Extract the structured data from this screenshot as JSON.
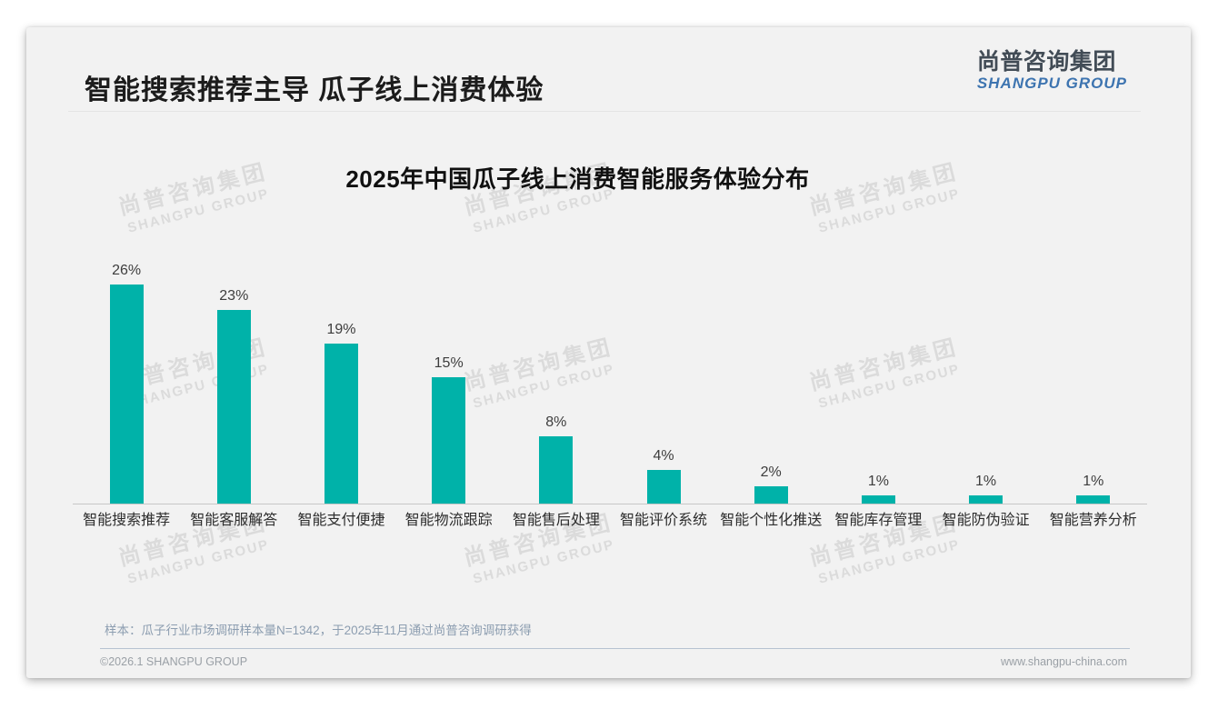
{
  "header": {
    "title": "智能搜索推荐主导 瓜子线上消费体验",
    "logo_cn": "尚普咨询集团",
    "logo_en": "SHANGPU GROUP"
  },
  "watermark": {
    "line1": "尚普咨询集团",
    "line2": "SHANGPU GROUP"
  },
  "chart_data": {
    "type": "bar",
    "title": "2025年中国瓜子线上消费智能服务体验分布",
    "categories": [
      "智能搜索推荐",
      "智能客服解答",
      "智能支付便捷",
      "智能物流跟踪",
      "智能售后处理",
      "智能评价系统",
      "智能个性化推送",
      "智能库存管理",
      "智能防伪验证",
      "智能营养分析"
    ],
    "values": [
      26,
      23,
      19,
      15,
      8,
      4,
      2,
      1,
      1,
      1
    ],
    "value_labels": [
      "26%",
      "23%",
      "19%",
      "15%",
      "8%",
      "4%",
      "2%",
      "1%",
      "1%",
      "1%"
    ],
    "unit": "%",
    "ylim": [
      0,
      28
    ],
    "grid": false,
    "legend": false,
    "bar_color": "#00b2a9",
    "value_label_color": "#3d3d3d",
    "axis_line_color": "#c7c7c7"
  },
  "footnote": "样本：瓜子行业市场调研样本量N=1342，于2025年11月通过尚普咨询调研获得",
  "footer": {
    "copyright": "©2026.1 SHANGPU GROUP",
    "website": "www.shangpu-china.com"
  }
}
